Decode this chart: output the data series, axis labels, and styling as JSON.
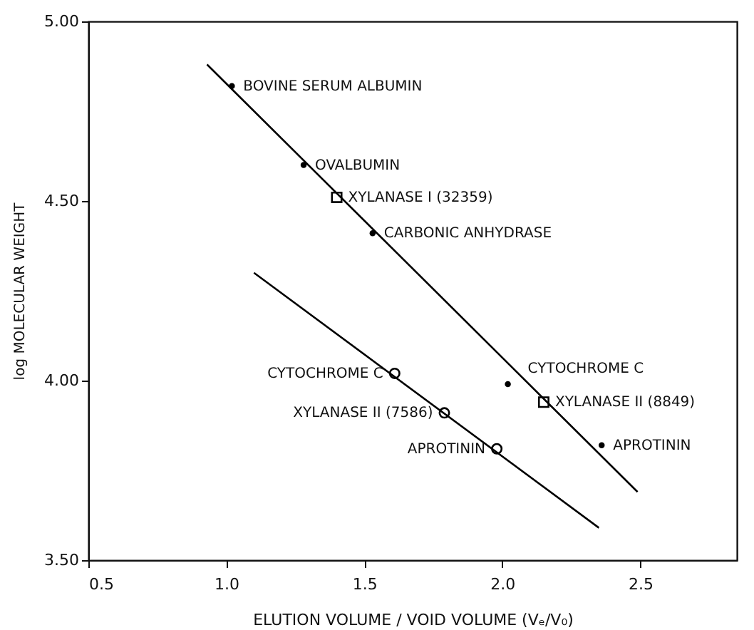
{
  "chart_data": {
    "type": "scatter",
    "xlabel": "ELUTION VOLUME / VOID VOLUME (Vₑ/V₀)",
    "ylabel": "log MOLECULAR WEIGHT",
    "xlim": [
      0.5,
      2.85
    ],
    "ylim": [
      3.5,
      5.0
    ],
    "xticks": [
      {
        "value": 0.5,
        "label": "0.5"
      },
      {
        "value": 1.0,
        "label": "1.0"
      },
      {
        "value": 1.5,
        "label": "1.5"
      },
      {
        "value": 2.0,
        "label": "2.0"
      },
      {
        "value": 2.5,
        "label": "2.5"
      }
    ],
    "yticks": [
      {
        "value": 3.5,
        "label": "3.50"
      },
      {
        "value": 4.0,
        "label": "4.00"
      },
      {
        "value": 4.5,
        "label": "4.50"
      },
      {
        "value": 5.0,
        "label": "5.00"
      }
    ],
    "grid": false,
    "series": [
      {
        "marker": "circle",
        "color": "#000000",
        "x": [
          1.02,
          1.28,
          1.53,
          2.02,
          2.36
        ],
        "values": [
          4.82,
          4.6,
          4.41,
          3.99,
          3.82
        ]
      },
      {
        "marker": "square",
        "color": "#000000",
        "x": [
          1.4,
          2.15
        ],
        "values": [
          4.51,
          3.94
        ]
      },
      {
        "marker": "circle",
        "color": "#000000",
        "x": [
          1.61,
          1.79,
          1.98
        ],
        "values": [
          4.02,
          3.91,
          3.81
        ]
      },
      {
        "type": "line",
        "marker": "none",
        "color": "#000000",
        "x": [
          0.93,
          2.49
        ],
        "values": [
          4.88,
          3.69
        ]
      },
      {
        "type": "line",
        "marker": "none",
        "color": "#000000",
        "x": [
          1.1,
          2.35
        ],
        "values": [
          4.3,
          3.59
        ]
      }
    ],
    "annotations": [
      {
        "text": "BOVINE SERUM ALBUMIN",
        "x": 1.02,
        "y": 4.82
      },
      {
        "text": "OVALBUMIN",
        "x": 1.28,
        "y": 4.6
      },
      {
        "text": "XYLANASE I (32359)",
        "x": 1.4,
        "y": 4.51
      },
      {
        "text": "CARBONIC ANHYDRASE",
        "x": 1.53,
        "y": 4.41
      },
      {
        "text": "CYTOCHROME C",
        "x": 2.02,
        "y": 3.99
      },
      {
        "text": "XYLANASE II (8849)",
        "x": 2.15,
        "y": 3.94
      },
      {
        "text": "APROTININ",
        "x": 2.36,
        "y": 3.82
      },
      {
        "text": "CYTOCHROME C",
        "x": 1.61,
        "y": 4.02
      },
      {
        "text": "XYLANASE II (7586)",
        "x": 1.79,
        "y": 3.91
      },
      {
        "text": "APROTININ",
        "x": 1.98,
        "y": 3.81
      }
    ]
  }
}
